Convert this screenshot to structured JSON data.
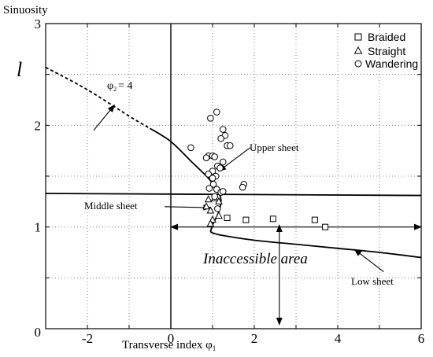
{
  "chart_data": {
    "type": "scatter",
    "title": "",
    "ylabel": "Sinuosity",
    "ylabel_symbol": "l",
    "xlabel": "Transverse index φ",
    "xlabel_sub": "1",
    "xlim": [
      -3,
      6
    ],
    "ylim": [
      0,
      3
    ],
    "grid": true,
    "grid_style": "dotted",
    "x_ticks": [
      -2,
      0,
      2,
      4,
      6
    ],
    "y_ticks": [
      1,
      2,
      3
    ],
    "x_tick_labels": [
      "-2",
      "0",
      "2",
      "4",
      "6"
    ],
    "y_tick_labels": [
      "1",
      "2",
      "3"
    ],
    "origin_label": "0",
    "legend_placement": "top-right",
    "legend": [
      {
        "name": "Braided",
        "marker": "square"
      },
      {
        "name": "Straight",
        "marker": "triangle"
      },
      {
        "name": "Wandering",
        "marker": "circle"
      }
    ],
    "series": [
      {
        "name": "Braided",
        "marker": "square",
        "points": [
          [
            1.35,
            1.09
          ],
          [
            1.8,
            1.07
          ],
          [
            2.45,
            1.08
          ],
          [
            3.45,
            1.07
          ],
          [
            3.7,
            1.0
          ]
        ]
      },
      {
        "name": "Straight",
        "marker": "triangle",
        "points": [
          [
            0.9,
            1.27
          ],
          [
            0.85,
            1.2
          ],
          [
            0.95,
            1.16
          ],
          [
            1.05,
            1.28
          ],
          [
            1.0,
            1.07
          ],
          [
            0.95,
            1.03
          ],
          [
            1.15,
            1.11
          ],
          [
            1.15,
            1.25
          ]
        ]
      },
      {
        "name": "Wandering",
        "marker": "circle",
        "points": [
          [
            1.1,
            2.13
          ],
          [
            0.95,
            2.07
          ],
          [
            1.25,
            1.96
          ],
          [
            1.3,
            1.9
          ],
          [
            1.2,
            1.87
          ],
          [
            1.35,
            1.8
          ],
          [
            1.42,
            1.8
          ],
          [
            0.48,
            1.78
          ],
          [
            0.9,
            1.7
          ],
          [
            1.0,
            1.7
          ],
          [
            1.05,
            1.69
          ],
          [
            0.85,
            1.68
          ],
          [
            1.25,
            1.64
          ],
          [
            1.12,
            1.6
          ],
          [
            1.18,
            1.58
          ],
          [
            1.0,
            1.55
          ],
          [
            0.9,
            1.52
          ],
          [
            1.08,
            1.5
          ],
          [
            1.0,
            1.48
          ],
          [
            1.02,
            1.42
          ],
          [
            0.92,
            1.38
          ],
          [
            1.1,
            1.37
          ],
          [
            1.2,
            1.34
          ],
          [
            1.25,
            1.35
          ],
          [
            1.05,
            1.3
          ],
          [
            1.12,
            1.18
          ],
          [
            1.75,
            1.42
          ],
          [
            1.72,
            1.39
          ]
        ]
      }
    ],
    "curves": {
      "phi2_curve": {
        "style": "dashed",
        "points": [
          [
            -3,
            2.57
          ],
          [
            -2,
            2.35
          ],
          [
            -1,
            2.09
          ],
          [
            -0.5,
            1.97
          ]
        ]
      },
      "upper_sheet": {
        "style": "solid",
        "points": [
          [
            -0.5,
            1.97
          ],
          [
            0,
            1.84
          ],
          [
            0.5,
            1.64
          ],
          [
            0.9,
            1.48
          ],
          [
            1.1,
            1.37
          ],
          [
            1.2,
            1.27
          ],
          [
            1.15,
            1.15
          ],
          [
            1.0,
            1.02
          ],
          [
            0.95,
            0.95
          ]
        ]
      },
      "low_sheet": {
        "style": "solid",
        "points": [
          [
            0.95,
            0.95
          ],
          [
            1.2,
            0.92
          ],
          [
            2.0,
            0.87
          ],
          [
            3.0,
            0.83
          ],
          [
            4.0,
            0.79
          ],
          [
            5.0,
            0.75
          ],
          [
            6.0,
            0.7
          ]
        ]
      },
      "middle_sheet": {
        "style": "solid",
        "points": [
          [
            -3,
            1.33
          ],
          [
            6,
            1.31
          ]
        ]
      }
    },
    "annotations": {
      "phi2_label": "φ",
      "phi2_sub": "2",
      "phi2_value": "= 4",
      "upper_sheet": "Upper sheet",
      "middle_sheet": "Middle sheet",
      "low_sheet": "Low sheet",
      "inaccessible": "Inaccessible area"
    }
  }
}
